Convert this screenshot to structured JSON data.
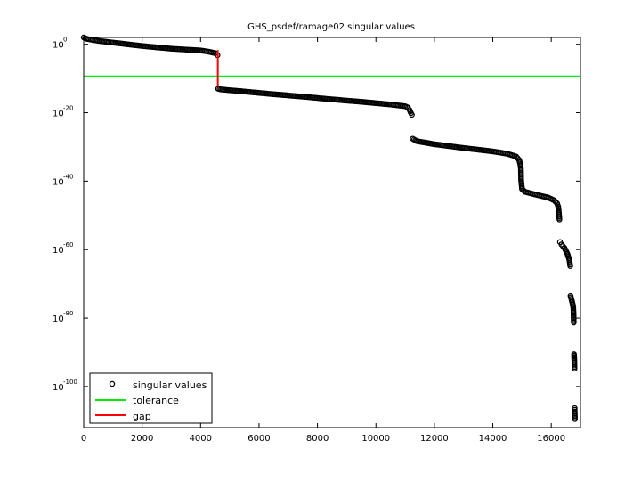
{
  "chart_data": {
    "type": "scatter",
    "title": "GHS_psdef/ramage02 singular values",
    "xlabel": "",
    "ylabel": "",
    "xlim": [
      0,
      17000
    ],
    "y_scale": "log",
    "ylim_exponent": [
      -112,
      2
    ],
    "x_ticks": [
      "0",
      "2000",
      "4000",
      "6000",
      "8000",
      "10000",
      "12000",
      "14000",
      "16000"
    ],
    "y_ticks": [
      {
        "base": "10",
        "exp": "0"
      },
      {
        "base": "10",
        "exp": "-20"
      },
      {
        "base": "10",
        "exp": "-40"
      },
      {
        "base": "10",
        "exp": "-60"
      },
      {
        "base": "10",
        "exp": "-80"
      },
      {
        "base": "10",
        "exp": "-100"
      }
    ],
    "grid": false,
    "legend_position": "bottom-left",
    "legend": [
      "singular values",
      "tolerance",
      "gap"
    ],
    "series": [
      {
        "name": "singular values",
        "marker": "circle",
        "color": "#000000",
        "points": [
          [
            0,
            2
          ],
          [
            100,
            1.6
          ],
          [
            500,
            1
          ],
          [
            1000,
            0.5
          ],
          [
            2000,
            -0.5
          ],
          [
            3000,
            -1.3
          ],
          [
            4000,
            -1.8
          ],
          [
            4300,
            -2.2
          ],
          [
            4500,
            -2.6
          ],
          [
            4580,
            -3.2
          ],
          [
            4600,
            -13
          ],
          [
            4700,
            -13.2
          ],
          [
            5500,
            -13.8
          ],
          [
            6500,
            -14.6
          ],
          [
            7500,
            -15.3
          ],
          [
            8500,
            -16.1
          ],
          [
            9500,
            -16.8
          ],
          [
            10500,
            -17.6
          ],
          [
            11000,
            -18.1
          ],
          [
            11100,
            -18.5
          ],
          [
            11150,
            -19.2
          ],
          [
            11200,
            -20.1
          ],
          [
            11230,
            -20.6
          ],
          [
            11260,
            -27.6
          ],
          [
            11400,
            -28.3
          ],
          [
            12000,
            -29.2
          ],
          [
            13000,
            -30.3
          ],
          [
            14000,
            -31.3
          ],
          [
            14500,
            -32
          ],
          [
            14800,
            -32.8
          ],
          [
            14900,
            -33.8
          ],
          [
            14940,
            -35
          ],
          [
            14960,
            -36.3
          ],
          [
            14970,
            -39.8
          ],
          [
            15000,
            -42.3
          ],
          [
            15100,
            -43.1
          ],
          [
            15500,
            -44
          ],
          [
            15900,
            -44.8
          ],
          [
            16100,
            -45.6
          ],
          [
            16200,
            -46.5
          ],
          [
            16240,
            -47.5
          ],
          [
            16260,
            -49
          ],
          [
            16280,
            -51.2
          ],
          [
            16300,
            -57.8
          ],
          [
            16350,
            -58.5
          ],
          [
            16450,
            -59.5
          ],
          [
            16550,
            -61.2
          ],
          [
            16620,
            -63
          ],
          [
            16650,
            -64.8
          ],
          [
            16660,
            -73.5
          ],
          [
            16700,
            -74.8
          ],
          [
            16750,
            -76.5
          ],
          [
            16760,
            -78
          ],
          [
            16770,
            -81.3
          ],
          [
            16780,
            -90.5
          ],
          [
            16790,
            -92.5
          ],
          [
            16795,
            -94.8
          ],
          [
            16800,
            -106.3
          ],
          [
            16805,
            -107.8
          ],
          [
            16810,
            -109.5
          ]
        ]
      },
      {
        "name": "tolerance",
        "color": "#00ee00",
        "y_exponent": -9.4
      },
      {
        "name": "gap",
        "color": "#ff0000",
        "x": 4590,
        "y_exponent_range": [
          -12.4,
          -1.7
        ]
      }
    ]
  }
}
